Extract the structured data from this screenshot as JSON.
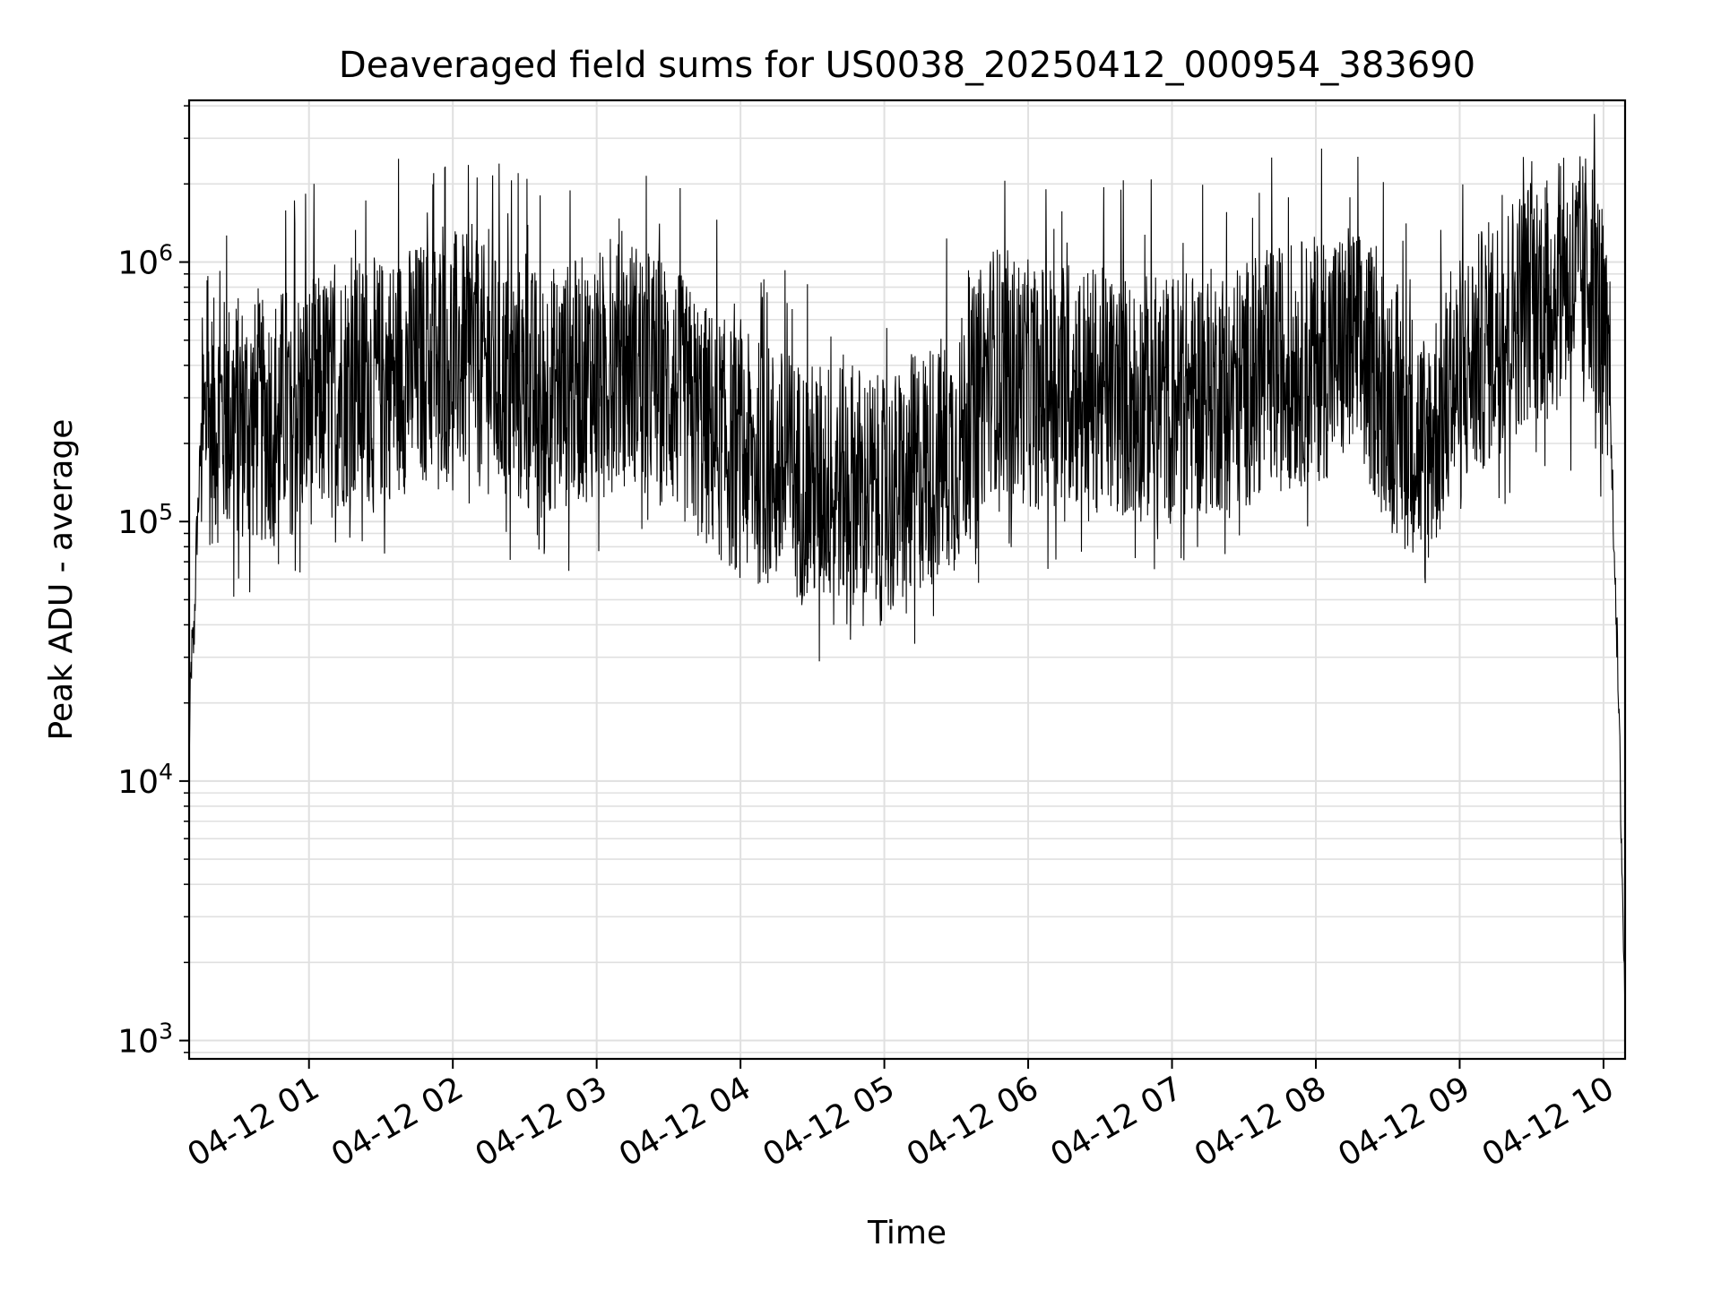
{
  "chart_data": {
    "type": "line",
    "title": "Deaveraged field sums for US0038_20250412_000954_383690",
    "xlabel": "Time",
    "ylabel": "Peak ADU - average",
    "yscale": "log",
    "ylim": [
      850,
      4200000
    ],
    "xlim": [
      "2025-04-12 00:10",
      "2025-04-12 10:09"
    ],
    "grid": true,
    "line_color": "#000000",
    "grid_color": "#e0e0e0",
    "x_ticks": [
      {
        "value": "2025-04-12 01:00",
        "label": "04-12 01"
      },
      {
        "value": "2025-04-12 02:00",
        "label": "04-12 02"
      },
      {
        "value": "2025-04-12 03:00",
        "label": "04-12 03"
      },
      {
        "value": "2025-04-12 04:00",
        "label": "04-12 04"
      },
      {
        "value": "2025-04-12 05:00",
        "label": "04-12 05"
      },
      {
        "value": "2025-04-12 06:00",
        "label": "04-12 06"
      },
      {
        "value": "2025-04-12 07:00",
        "label": "04-12 07"
      },
      {
        "value": "2025-04-12 08:00",
        "label": "04-12 08"
      },
      {
        "value": "2025-04-12 09:00",
        "label": "04-12 09"
      },
      {
        "value": "2025-04-12 10:00",
        "label": "04-12 10"
      }
    ],
    "y_ticks": [
      {
        "value": 1000,
        "base": "10",
        "exp": "3"
      },
      {
        "value": 10000,
        "base": "10",
        "exp": "4"
      },
      {
        "value": 100000,
        "base": "10",
        "exp": "5"
      },
      {
        "value": 1000000,
        "base": "10",
        "exp": "6"
      }
    ],
    "series": [
      {
        "x": [
          "2025-04-12 00:10",
          "2025-04-12 00:11",
          "2025-04-12 00:12",
          "2025-04-12 00:13",
          "2025-04-12 00:15",
          "2025-04-12 00:20",
          "2025-04-12 00:30",
          "2025-04-12 00:40",
          "2025-04-12 00:50",
          "2025-04-12 01:00",
          "2025-04-12 01:15",
          "2025-04-12 01:30",
          "2025-04-12 01:45",
          "2025-04-12 02:00",
          "2025-04-12 02:15",
          "2025-04-12 02:30",
          "2025-04-12 02:45",
          "2025-04-12 03:00",
          "2025-04-12 03:15",
          "2025-04-12 03:30",
          "2025-04-12 03:45",
          "2025-04-12 04:00",
          "2025-04-12 04:15",
          "2025-04-12 04:30",
          "2025-04-12 04:45",
          "2025-04-12 05:00",
          "2025-04-12 05:15",
          "2025-04-12 05:30",
          "2025-04-12 05:45",
          "2025-04-12 06:00",
          "2025-04-12 06:15",
          "2025-04-12 06:30",
          "2025-04-12 06:45",
          "2025-04-12 07:00",
          "2025-04-12 07:15",
          "2025-04-12 07:30",
          "2025-04-12 07:45",
          "2025-04-12 08:00",
          "2025-04-12 08:15",
          "2025-04-12 08:30",
          "2025-04-12 08:45",
          "2025-04-12 09:00",
          "2025-04-12 09:15",
          "2025-04-12 09:30",
          "2025-04-12 09:45",
          "2025-04-12 09:55",
          "2025-04-12 10:00",
          "2025-04-12 10:03",
          "2025-04-12 10:05",
          "2025-04-12 10:07",
          "2025-04-12 10:08",
          "2025-04-12 10:09"
        ],
        "y": [
          13000,
          30000,
          35000,
          80000,
          200000,
          230000,
          240000,
          225000,
          260000,
          270000,
          320000,
          330000,
          380000,
          430000,
          360000,
          300000,
          310000,
          350000,
          400000,
          320000,
          220000,
          170000,
          150000,
          130000,
          140000,
          110000,
          150000,
          180000,
          380000,
          320000,
          330000,
          300000,
          280000,
          290000,
          300000,
          320000,
          370000,
          400000,
          450000,
          300000,
          180000,
          330000,
          500000,
          700000,
          750000,
          900000,
          500000,
          200000,
          60000,
          10000,
          3500,
          1200
        ],
        "band_upper_factor": 3.2,
        "band_lower_factor": 0.35,
        "spike_upper_factor": 7.5,
        "spike_lower_factor": 0.2
      }
    ]
  }
}
